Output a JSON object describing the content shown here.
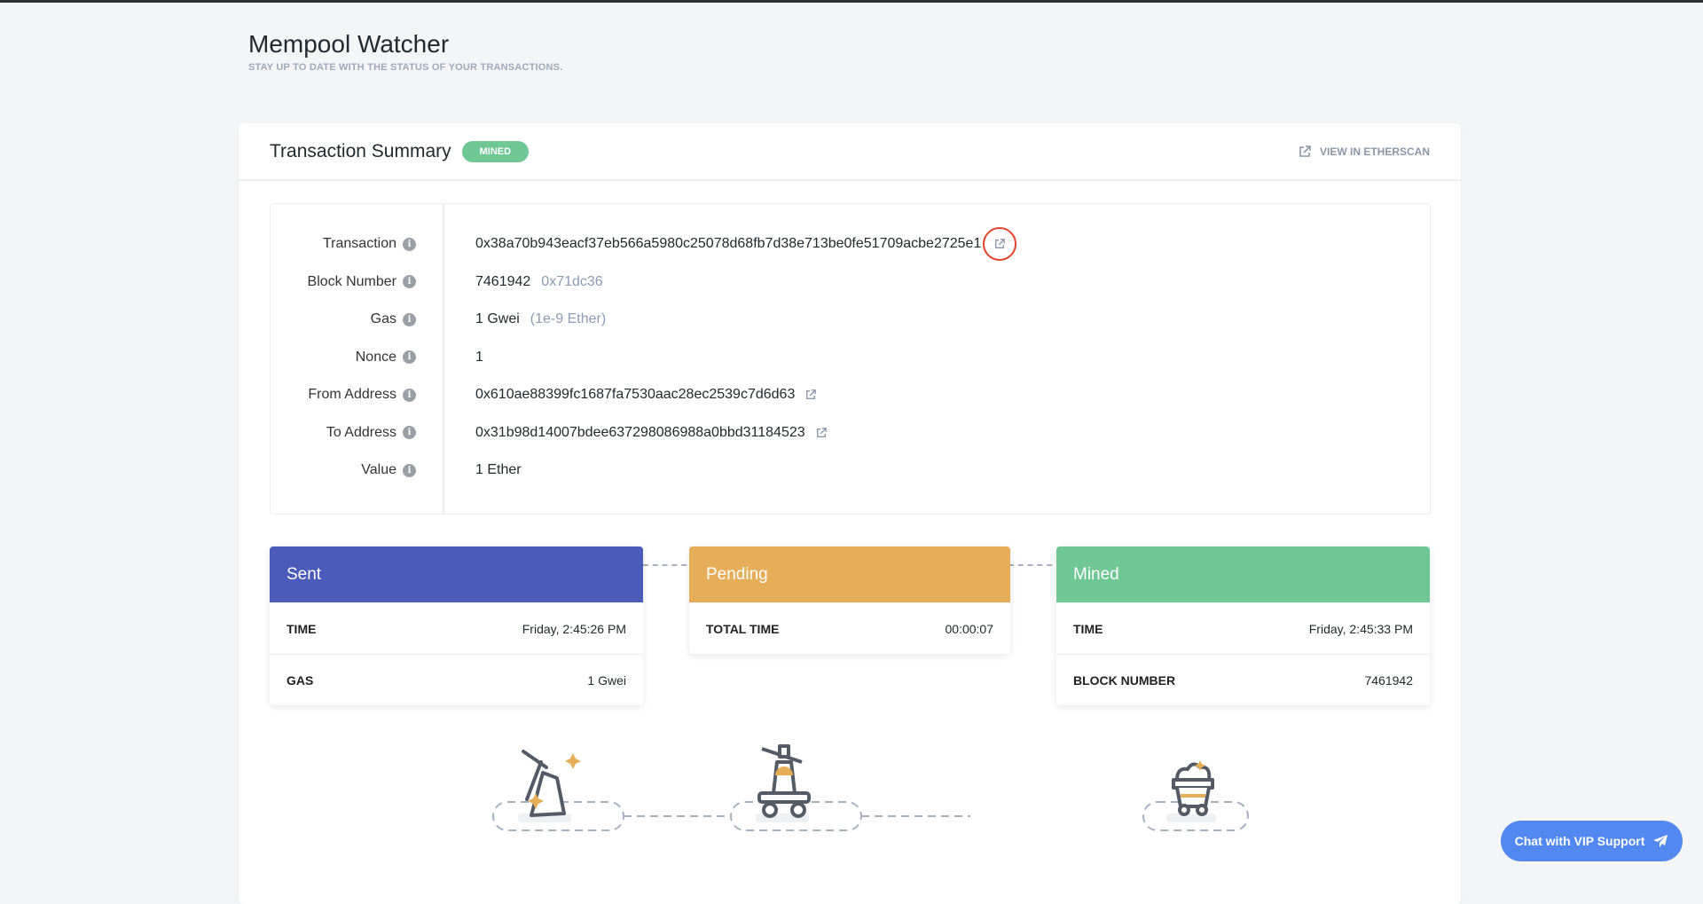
{
  "header": {
    "title": "Mempool Watcher",
    "subtitle": "STAY UP TO DATE WITH THE STATUS OF YOUR TRANSACTIONS."
  },
  "summary": {
    "title": "Transaction Summary",
    "status": "MINED",
    "etherscan_label": "VIEW IN ETHERSCAN"
  },
  "details": [
    {
      "label": "Transaction",
      "value": "0x38a70b943eacf37eb566a5980c25078d68fb7d38e713be0fe51709acbe2725e1",
      "extra": "",
      "link": true
    },
    {
      "label": "Block Number",
      "value": "7461942",
      "extra": "0x71dc36",
      "link": false
    },
    {
      "label": "Gas",
      "value": "1 Gwei",
      "extra": "(1e-9 Ether)",
      "link": false
    },
    {
      "label": "Nonce",
      "value": "1",
      "extra": "",
      "link": false
    },
    {
      "label": "From Address",
      "value": "0x610ae88399fc1687fa7530aac28ec2539c7d6d63",
      "extra": "",
      "link": true
    },
    {
      "label": "To Address",
      "value": "0x31b98d14007bdee637298086988a0bbd31184523",
      "extra": "",
      "link": true
    },
    {
      "label": "Value",
      "value": "1 Ether",
      "extra": "",
      "link": false
    }
  ],
  "stages": {
    "sent": {
      "title": "Sent",
      "color": "#4a5bb9",
      "rows": [
        {
          "k": "TIME",
          "v": "Friday, 2:45:26 PM"
        },
        {
          "k": "GAS",
          "v": "1 Gwei"
        }
      ]
    },
    "pending": {
      "title": "Pending",
      "color": "#e6ae58",
      "rows": [
        {
          "k": "TOTAL TIME",
          "v": "00:00:07"
        }
      ]
    },
    "mined": {
      "title": "Mined",
      "color": "#6fc795",
      "rows": [
        {
          "k": "TIME",
          "v": "Friday, 2:45:33 PM"
        },
        {
          "k": "BLOCK NUMBER",
          "v": "7461942"
        }
      ]
    }
  },
  "illustrations": [
    "pickaxe-rock-icon",
    "bell-cart-icon",
    "mine-cart-icon"
  ],
  "chat": {
    "label": "Chat with VIP Support",
    "icon": "paper-plane-icon"
  }
}
